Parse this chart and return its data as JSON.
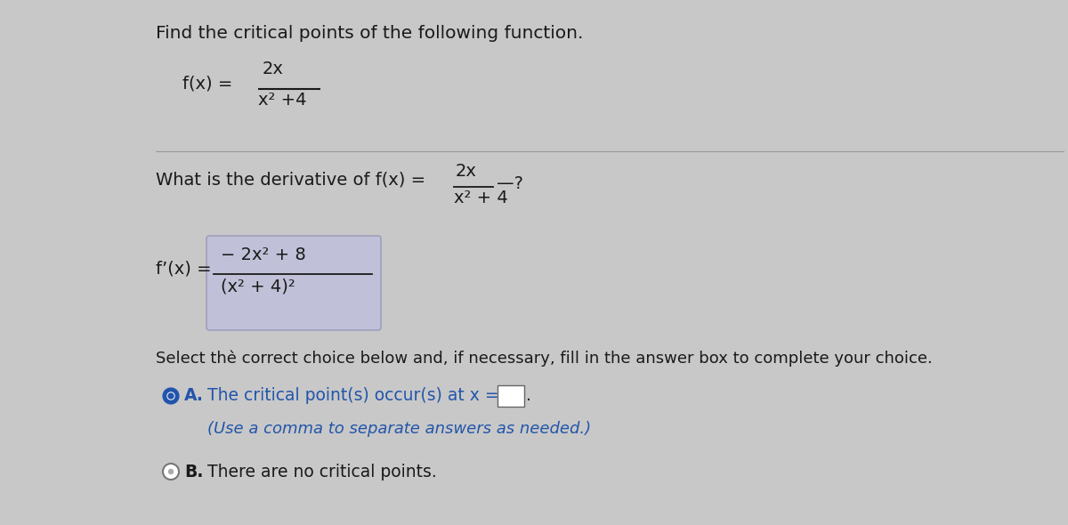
{
  "background_color": "#c8c8c8",
  "panel_color": "#d8d8d8",
  "title_text": "Find the critical points of the following function.",
  "title_fontsize": 14,
  "fx_label": "f(x) =",
  "fx_numerator": "2x",
  "fx_denominator": "x² +4",
  "question_text": "What is the derivative of f(x) =",
  "question_frac_num": "2x",
  "question_frac_den": "x² + 4",
  "question_suffix": "—?",
  "derivative_label": "f’(x) =",
  "deriv_numerator": "− 2x² + 8",
  "deriv_denominator": "(x² + 4)²",
  "deriv_box_color": "#c0c0d8",
  "select_text": "Select thè correct choice below and, if necessary, fill in the answer box to complete your choice.",
  "choice_A_label": "A.",
  "choice_A_text": "The critical point(s) occur(s) at x =",
  "choice_A_sub": "(Use a comma to separate answers as needed.)",
  "choice_B_label": "B.",
  "choice_B_text": "There are no critical points.",
  "font_color": "#1a1a1a",
  "blue_color": "#2255aa",
  "line_color": "#999999"
}
